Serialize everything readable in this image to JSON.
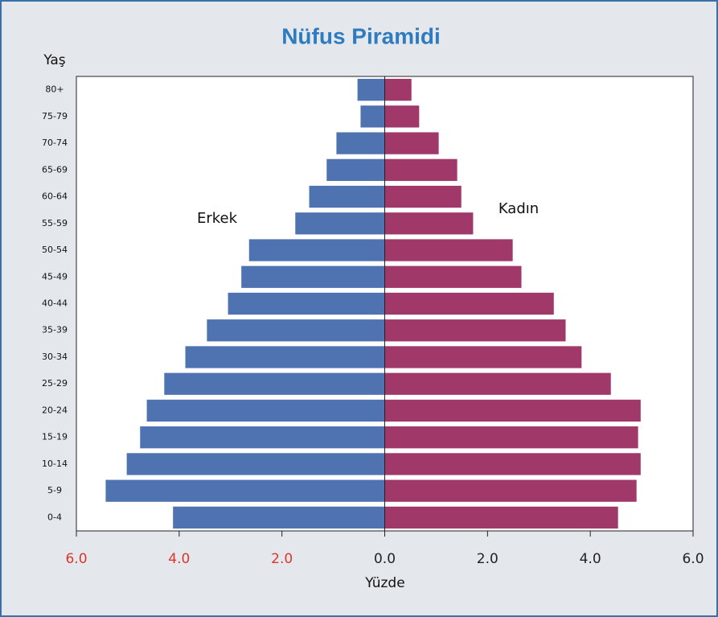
{
  "chart_data": {
    "type": "pyramid",
    "title": "Nüfus Piramidi",
    "y_label": "Yaş",
    "x_label": "Yüzde",
    "categories": [
      "0-4",
      "5-9",
      "10-14",
      "15-19",
      "20-24",
      "25-29",
      "30-34",
      "35-39",
      "40-44",
      "45-49",
      "50-54",
      "55-59",
      "60-64",
      "65-69",
      "70-74",
      "75-79",
      "80+"
    ],
    "series": [
      {
        "name": "Erkek",
        "color": "#4e73b0",
        "values": [
          -4.12,
          -5.43,
          -5.02,
          -4.76,
          -4.63,
          -4.29,
          -3.88,
          -3.46,
          -3.05,
          -2.79,
          -2.64,
          -1.74,
          -1.47,
          -1.13,
          -0.94,
          -0.47,
          -0.53
        ]
      },
      {
        "name": "Kadın",
        "color": "#a03869",
        "values": [
          4.54,
          4.9,
          4.98,
          4.93,
          4.98,
          4.4,
          3.83,
          3.52,
          3.29,
          2.66,
          2.49,
          1.72,
          1.49,
          1.41,
          1.05,
          0.67,
          0.52
        ]
      }
    ],
    "xlim": [
      -6,
      6
    ],
    "xticks": [
      {
        "value": -6,
        "label": "6.0"
      },
      {
        "value": -4,
        "label": "4.0"
      },
      {
        "value": -2,
        "label": "2.0"
      },
      {
        "value": 0,
        "label": "0.0"
      },
      {
        "value": 2,
        "label": "2.0"
      },
      {
        "value": 4,
        "label": "4.0"
      },
      {
        "value": 6,
        "label": "6.0"
      }
    ],
    "negative_tick_color": "#d9372b",
    "tick_color": "#222222"
  }
}
